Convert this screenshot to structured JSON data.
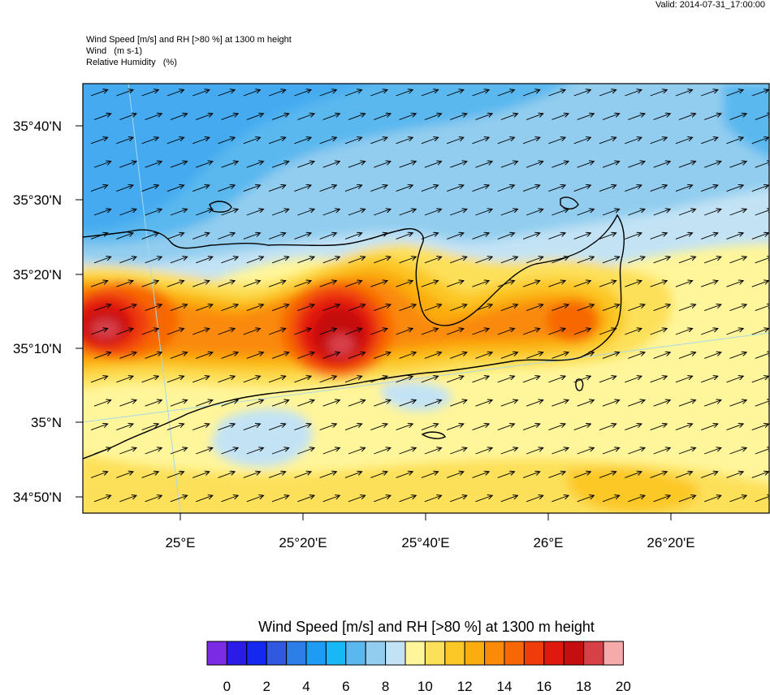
{
  "header": {
    "valid": "Valid: 2014-07-31_17:00:00",
    "line1": "Wind Speed [m/s] and RH [>80 %] at 1300 m height",
    "line2": "Wind   (m s-1)",
    "line3": "Relative Humidity   (%)"
  },
  "axes": {
    "lat_labels": [
      "35°40'N",
      "35°30'N",
      "35°20'N",
      "35°10'N",
      "35°N",
      "34°50'N"
    ],
    "lon_labels": [
      "25°E",
      "25°20'E",
      "25°40'E",
      "26°E",
      "26°20'E"
    ]
  },
  "colorbar": {
    "title": "Wind Speed [m/s] and RH [>80 %] at 1300 m height",
    "labels": [
      "0",
      "2",
      "4",
      "6",
      "8",
      "10",
      "12",
      "14",
      "16",
      "18",
      "20"
    ],
    "colors": [
      "#7a2be3",
      "#2a1be8",
      "#1528f0",
      "#3159e0",
      "#2d7ee8",
      "#1e9cf5",
      "#17b8f5",
      "#5ab8ef",
      "#92cdef",
      "#c3e3f5",
      "#fff59a",
      "#fde05a",
      "#fcc827",
      "#fbad10",
      "#fa8a07",
      "#f76706",
      "#ef3c0a",
      "#e0190f",
      "#c40e10",
      "#d84048",
      "#f7aaaa"
    ]
  },
  "map": {
    "wind_direction": "east-northeast"
  }
}
